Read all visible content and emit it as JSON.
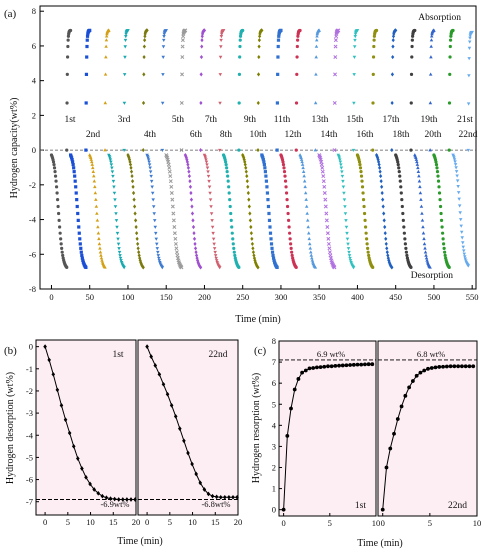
{
  "figure": {
    "panel_labels": [
      "(a)",
      "(b)",
      "(c)"
    ]
  },
  "chart_data": [
    {
      "id": "a",
      "type": "scatter",
      "title": "",
      "xlabel": "Time (min)",
      "ylabel": "Hydrogen capacity(wt%)",
      "xlim": [
        -15,
        555
      ],
      "ylim": [
        -8,
        8.3
      ],
      "xticks": [
        0,
        50,
        100,
        150,
        200,
        250,
        300,
        350,
        400,
        450,
        500,
        550
      ],
      "yticks": [
        -8,
        -6,
        -4,
        -2,
        0,
        2,
        4,
        6,
        8
      ],
      "grid": false,
      "annotations": {
        "top": "Absorption",
        "bottom": "Desorption"
      },
      "cycles": [
        "1st",
        "2nd",
        "3rd",
        "4th",
        "5th",
        "6th",
        "7th",
        "8th",
        "9th",
        "10th",
        "11th",
        "12th",
        "13th",
        "14th",
        "15th",
        "16th",
        "17th",
        "18th",
        "19th",
        "20th",
        "21st",
        "22nd"
      ],
      "cycle_label_rows": [
        1,
        2,
        1,
        2,
        1,
        2,
        1,
        2,
        1,
        2,
        1,
        2,
        1,
        2,
        1,
        2,
        1,
        2,
        1,
        2,
        1,
        2
      ],
      "desorption_start": [
        0,
        25,
        50,
        75,
        100,
        125,
        150,
        175,
        200,
        225,
        250,
        275,
        300,
        325,
        350,
        375,
        400,
        425,
        450,
        475,
        500,
        525
      ],
      "desorption_duration_min": 20,
      "desorption_final": [
        -6.9,
        -6.9,
        -6.9,
        -6.9,
        -6.9,
        -6.9,
        -6.9,
        -6.9,
        -6.9,
        -6.9,
        -6.9,
        -6.9,
        -6.9,
        -6.9,
        -6.9,
        -6.9,
        -6.9,
        -6.9,
        -6.9,
        -6.9,
        -6.9,
        -6.8
      ],
      "absorption_start": [
        20,
        45,
        70,
        95,
        120,
        145,
        170,
        195,
        220,
        245,
        270,
        295,
        320,
        345,
        370,
        395,
        420,
        445,
        470,
        495,
        520,
        545
      ],
      "absorption_duration_min": 5,
      "absorption_final": [
        6.9,
        6.9,
        6.9,
        6.9,
        6.9,
        6.9,
        6.9,
        6.9,
        6.9,
        6.9,
        6.9,
        6.9,
        6.9,
        6.9,
        6.9,
        6.9,
        6.9,
        6.9,
        6.9,
        6.9,
        6.9,
        6.8
      ],
      "series_colors": [
        "#555555",
        "#1a4fd6",
        "#d4a017",
        "#17a9b0",
        "#7a7a10",
        "#3f7bd0",
        "#9a9a9a",
        "#a050d0",
        "#d06070",
        "#20b0b0",
        "#808000",
        "#3070d0",
        "#cc3355",
        "#5599dd",
        "#b070e0",
        "#30c0c0",
        "#909010",
        "#2060c0",
        "#404040",
        "#3366cc",
        "#2a9a2a",
        "#66aaee"
      ],
      "series_markers": [
        "circle",
        "square",
        "triangle-up",
        "triangle-down",
        "diamond",
        "triangle-down",
        "cross",
        "diamond",
        "triangle-down",
        "circle",
        "diamond",
        "square",
        "circle",
        "triangle-up",
        "cross",
        "triangle-down",
        "circle",
        "diamond",
        "circle",
        "triangle-up",
        "circle",
        "triangle-down"
      ]
    },
    {
      "id": "b",
      "type": "line",
      "xlabel": "Time (min)",
      "ylabel": "Hydrogen desorption (wt%)",
      "xlim": [
        -2,
        20
      ],
      "ylim": [
        -7.6,
        0.3
      ],
      "xticks": [
        0,
        5,
        10,
        15,
        20
      ],
      "yticks": [
        0,
        -1,
        -2,
        -3,
        -4,
        -5,
        -6,
        -7
      ],
      "reference_line": -6.9,
      "series": [
        {
          "name": "1st",
          "label": "-6.9wt%",
          "x": [
            0,
            0.9,
            1.8,
            2.7,
            3.6,
            4.5,
            5.4,
            6.3,
            7.2,
            8.1,
            9.0,
            9.9,
            10.8,
            11.7,
            12.6,
            13.5,
            14.4,
            15.3,
            16.2,
            17.1,
            18.0,
            18.9,
            19.8
          ],
          "y": [
            0,
            -0.6,
            -1.25,
            -1.95,
            -2.65,
            -3.3,
            -3.9,
            -4.5,
            -5.05,
            -5.5,
            -5.9,
            -6.2,
            -6.45,
            -6.62,
            -6.75,
            -6.82,
            -6.86,
            -6.88,
            -6.9,
            -6.9,
            -6.9,
            -6.9,
            -6.9
          ]
        },
        {
          "name": "22nd",
          "label": "-6.8wt%",
          "x": [
            0,
            0.9,
            1.8,
            2.7,
            3.6,
            4.5,
            5.4,
            6.3,
            7.2,
            8.1,
            9.0,
            9.9,
            10.8,
            11.7,
            12.6,
            13.5,
            14.4,
            15.3,
            16.2,
            17.1,
            18.0,
            18.9,
            19.8
          ],
          "y": [
            0,
            -0.45,
            -0.85,
            -1.25,
            -1.7,
            -2.15,
            -2.65,
            -3.15,
            -3.7,
            -4.25,
            -4.8,
            -5.3,
            -5.75,
            -6.15,
            -6.45,
            -6.65,
            -6.75,
            -6.78,
            -6.8,
            -6.8,
            -6.8,
            -6.8,
            -6.8
          ]
        }
      ]
    },
    {
      "id": "c",
      "type": "line",
      "xlabel": "Time (min)",
      "ylabel": "Hydrogen resorption (wt%)",
      "xlim": [
        -0.5,
        10
      ],
      "ylim": [
        -0.3,
        8
      ],
      "xticks": [
        0,
        5,
        10
      ],
      "yticks": [
        0,
        1,
        2,
        3,
        4,
        5,
        6,
        7,
        8
      ],
      "reference_line": 7.1,
      "series": [
        {
          "name": "1st",
          "label": "6.9 wt%",
          "x": [
            0,
            0.4,
            0.8,
            1.2,
            1.6,
            2.0,
            2.4,
            2.8,
            3.2,
            3.6,
            4.0,
            4.4,
            4.8,
            5.2,
            5.6,
            6.0,
            6.4,
            6.8,
            7.2,
            7.6,
            8.0,
            8.4,
            8.8,
            9.2,
            9.6
          ],
          "y": [
            0,
            3.5,
            4.8,
            5.7,
            6.2,
            6.5,
            6.6,
            6.7,
            6.72,
            6.75,
            6.76,
            6.78,
            6.8,
            6.8,
            6.82,
            6.83,
            6.84,
            6.85,
            6.86,
            6.87,
            6.88,
            6.88,
            6.89,
            6.9,
            6.9
          ]
        },
        {
          "name": "22nd",
          "label": "6.8 wt%",
          "x": [
            0,
            0.4,
            0.8,
            1.2,
            1.6,
            2.0,
            2.4,
            2.8,
            3.2,
            3.6,
            4.0,
            4.4,
            4.8,
            5.2,
            5.6,
            6.0,
            6.4,
            6.8,
            7.2,
            7.6,
            8.0,
            8.4,
            8.8,
            9.2,
            9.6
          ],
          "y": [
            0,
            2.0,
            2.9,
            3.6,
            4.3,
            4.9,
            5.4,
            5.8,
            6.1,
            6.35,
            6.5,
            6.6,
            6.68,
            6.72,
            6.75,
            6.77,
            6.78,
            6.79,
            6.8,
            6.8,
            6.8,
            6.8,
            6.8,
            6.8,
            6.8
          ]
        }
      ]
    }
  ]
}
